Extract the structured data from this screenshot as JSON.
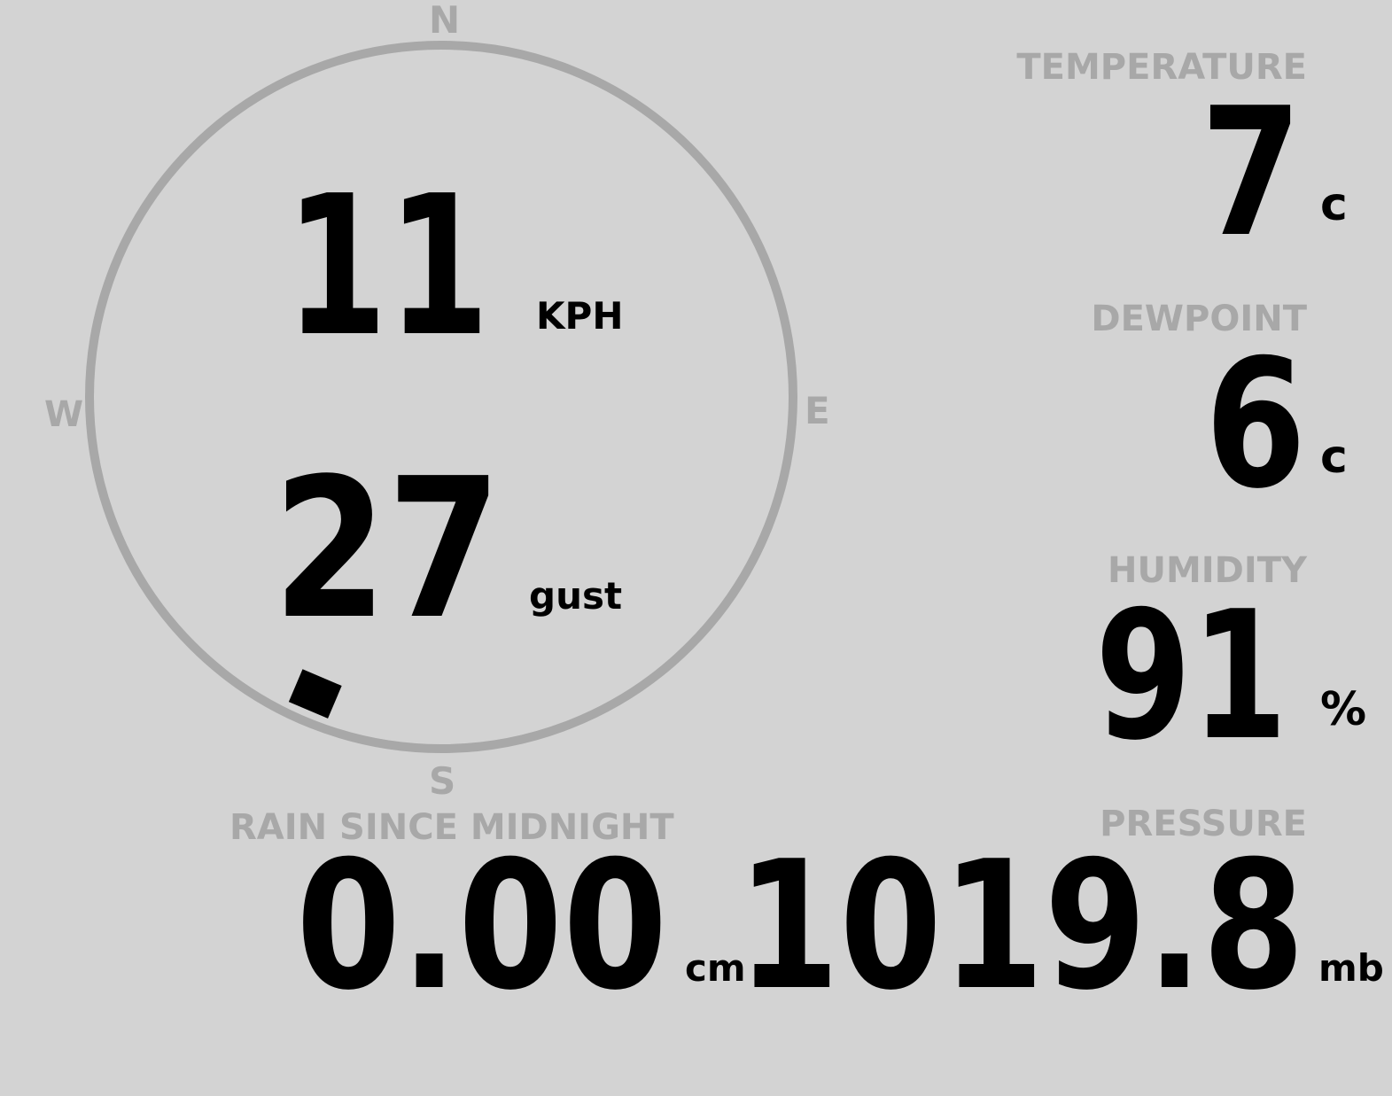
{
  "compass": {
    "n": "N",
    "e": "E",
    "s": "S",
    "w": "W",
    "wind_direction_deg": 203,
    "ring_color": "#a8a8a8"
  },
  "wind": {
    "speed": "11",
    "speed_unit": "KPH",
    "gust": "27",
    "gust_unit": "gust"
  },
  "temperature": {
    "label": "TEMPERATURE",
    "value": "7",
    "unit": "c"
  },
  "dewpoint": {
    "label": "DEWPOINT",
    "value": "6",
    "unit": "c"
  },
  "humidity": {
    "label": "HUMIDITY",
    "value": "91",
    "unit": "%"
  },
  "rain": {
    "label": "RAIN SINCE MIDNIGHT",
    "value": "0.00",
    "unit": "cm"
  },
  "pressure": {
    "label": "PRESSURE",
    "value": "1019.8",
    "unit": "mb"
  }
}
